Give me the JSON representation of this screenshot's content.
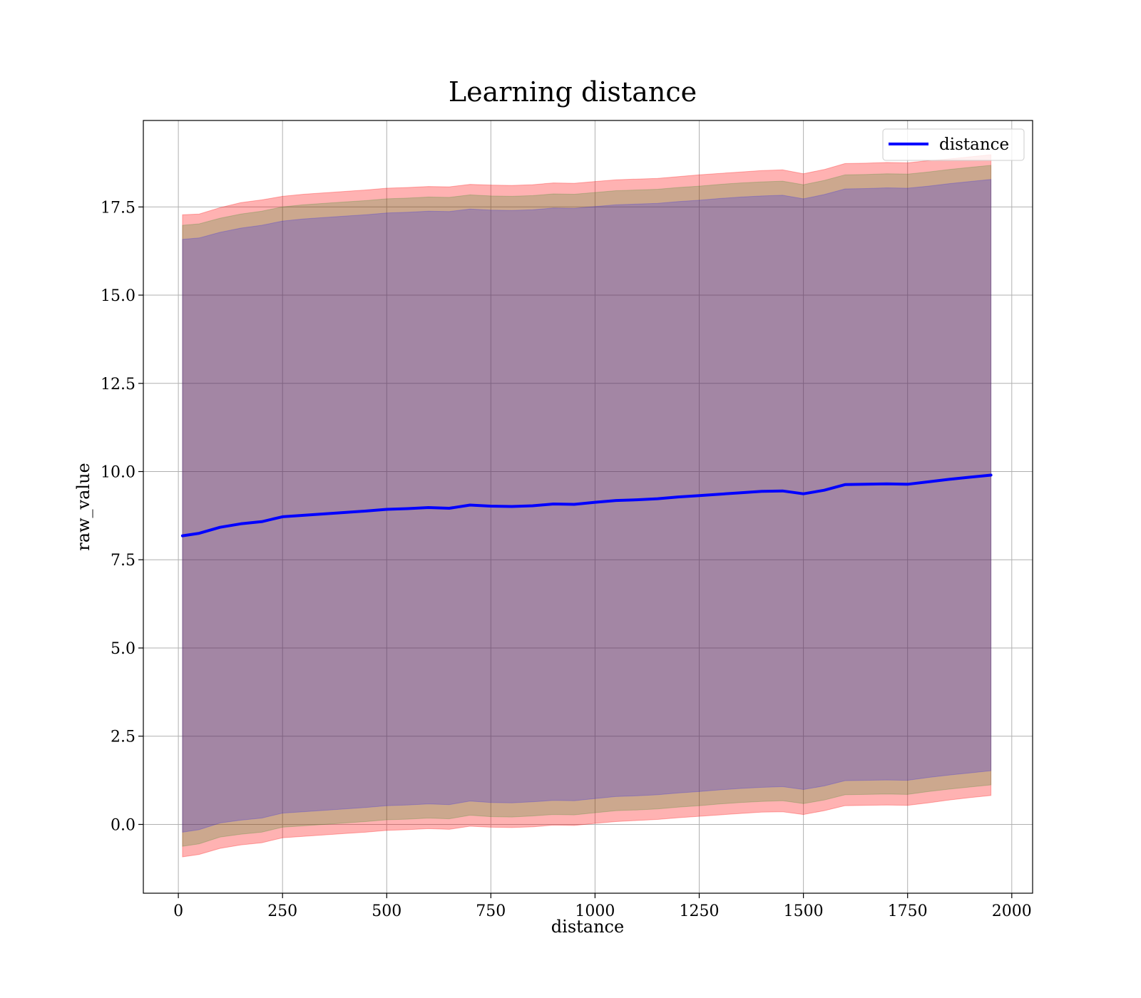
{
  "chart_data": {
    "type": "line",
    "title": "Learning distance",
    "xlabel": "distance",
    "ylabel": "raw_value",
    "xlim": [
      -84,
      2050
    ],
    "ylim": [
      -1.95,
      19.95
    ],
    "x_ticks": [
      0,
      250,
      500,
      750,
      1000,
      1250,
      1500,
      1750,
      2000
    ],
    "y_ticks": [
      0.0,
      2.5,
      5.0,
      7.5,
      10.0,
      12.5,
      15.0,
      17.5
    ],
    "x_tick_labels": [
      "0",
      "250",
      "500",
      "750",
      "1000",
      "1250",
      "1500",
      "1750",
      "2000"
    ],
    "y_tick_labels": [
      "0.0",
      "2.5",
      "5.0",
      "7.5",
      "10.0",
      "12.5",
      "15.0",
      "17.5"
    ],
    "grid": true,
    "legend_position": "top-right",
    "x": [
      10,
      50,
      100,
      150,
      200,
      250,
      300,
      350,
      400,
      450,
      500,
      550,
      600,
      650,
      700,
      750,
      800,
      850,
      900,
      950,
      1000,
      1050,
      1100,
      1150,
      1200,
      1250,
      1300,
      1350,
      1400,
      1450,
      1500,
      1550,
      1600,
      1650,
      1700,
      1750,
      1800,
      1850,
      1900,
      1950
    ],
    "series": [
      {
        "name": "distance",
        "color": "#0000ff",
        "values": [
          8.18,
          8.25,
          8.42,
          8.52,
          8.58,
          8.72,
          8.76,
          8.8,
          8.84,
          8.88,
          8.93,
          8.95,
          8.98,
          8.96,
          9.05,
          9.02,
          9.01,
          9.03,
          9.08,
          9.07,
          9.13,
          9.18,
          9.2,
          9.23,
          9.28,
          9.32,
          9.36,
          9.4,
          9.44,
          9.45,
          9.37,
          9.47,
          9.63,
          9.64,
          9.65,
          9.64,
          9.71,
          9.78,
          9.84,
          9.9
        ]
      }
    ],
    "bands": [
      {
        "color": "#ff0000",
        "opacity": 0.3,
        "upper": [
          17.28,
          17.3,
          17.48,
          17.62,
          17.7,
          17.8,
          17.86,
          17.9,
          17.94,
          17.98,
          18.03,
          18.05,
          18.08,
          18.07,
          18.14,
          18.12,
          18.11,
          18.13,
          18.18,
          18.17,
          18.22,
          18.27,
          18.29,
          18.31,
          18.36,
          18.41,
          18.45,
          18.49,
          18.53,
          18.55,
          18.44,
          18.56,
          18.73,
          18.74,
          18.76,
          18.75,
          18.81,
          18.86,
          18.92,
          18.98
        ],
        "lower": [
          -0.92,
          -0.85,
          -0.68,
          -0.58,
          -0.52,
          -0.38,
          -0.34,
          -0.3,
          -0.26,
          -0.22,
          -0.17,
          -0.15,
          -0.12,
          -0.14,
          -0.05,
          -0.08,
          -0.09,
          -0.07,
          -0.02,
          -0.03,
          0.03,
          0.08,
          0.11,
          0.14,
          0.19,
          0.23,
          0.27,
          0.31,
          0.35,
          0.36,
          0.28,
          0.39,
          0.53,
          0.54,
          0.55,
          0.54,
          0.61,
          0.69,
          0.76,
          0.82
        ]
      },
      {
        "color": "#008000",
        "opacity": 0.2,
        "upper": [
          16.98,
          17.02,
          17.18,
          17.3,
          17.38,
          17.5,
          17.56,
          17.6,
          17.64,
          17.68,
          17.73,
          17.75,
          17.78,
          17.77,
          17.84,
          17.81,
          17.8,
          17.82,
          17.87,
          17.86,
          17.91,
          17.96,
          17.98,
          18.0,
          18.05,
          18.09,
          18.14,
          18.18,
          18.21,
          18.23,
          18.13,
          18.25,
          18.41,
          18.42,
          18.44,
          18.43,
          18.49,
          18.56,
          18.62,
          18.68
        ],
        "lower": [
          -0.62,
          -0.55,
          -0.36,
          -0.28,
          -0.22,
          -0.08,
          -0.04,
          0.0,
          0.04,
          0.08,
          0.13,
          0.15,
          0.18,
          0.16,
          0.26,
          0.22,
          0.21,
          0.24,
          0.28,
          0.27,
          0.33,
          0.39,
          0.41,
          0.44,
          0.49,
          0.53,
          0.58,
          0.62,
          0.65,
          0.67,
          0.59,
          0.69,
          0.84,
          0.85,
          0.86,
          0.85,
          0.93,
          1.0,
          1.06,
          1.12
        ]
      },
      {
        "color": "#0000ff",
        "opacity": 0.2,
        "upper": [
          16.58,
          16.62,
          16.78,
          16.9,
          16.98,
          17.1,
          17.16,
          17.2,
          17.24,
          17.28,
          17.33,
          17.35,
          17.38,
          17.37,
          17.44,
          17.41,
          17.4,
          17.42,
          17.47,
          17.46,
          17.51,
          17.56,
          17.58,
          17.6,
          17.65,
          17.69,
          17.74,
          17.78,
          17.81,
          17.83,
          17.73,
          17.85,
          18.01,
          18.02,
          18.04,
          18.03,
          18.09,
          18.16,
          18.22,
          18.28
        ],
        "lower": [
          -0.22,
          -0.15,
          0.04,
          0.12,
          0.18,
          0.32,
          0.36,
          0.4,
          0.44,
          0.48,
          0.53,
          0.55,
          0.58,
          0.56,
          0.66,
          0.62,
          0.61,
          0.64,
          0.68,
          0.67,
          0.73,
          0.79,
          0.81,
          0.84,
          0.89,
          0.93,
          0.98,
          1.02,
          1.05,
          1.07,
          0.99,
          1.09,
          1.24,
          1.25,
          1.26,
          1.25,
          1.33,
          1.4,
          1.46,
          1.52
        ]
      }
    ]
  }
}
